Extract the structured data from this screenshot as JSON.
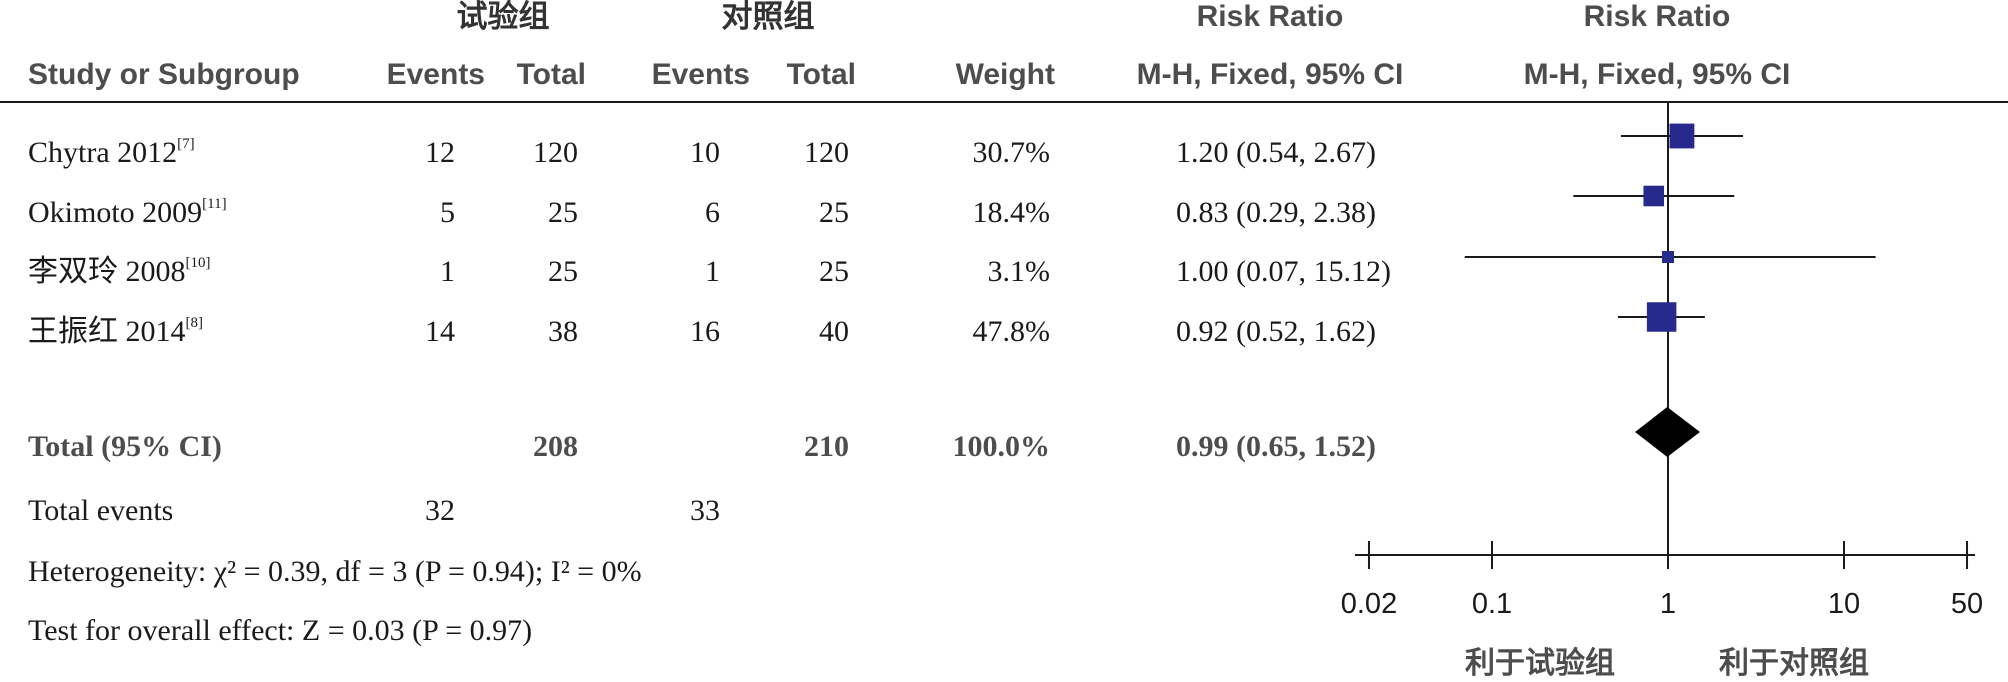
{
  "headers": {
    "exp_group": "试验组",
    "ctrl_group": "对照组",
    "rr_title_left": "Risk Ratio",
    "rr_title_right": "Risk Ratio",
    "study": "Study or Subgroup",
    "events": "Events",
    "total": "Total",
    "weight": "Weight",
    "method_left": "M-H, Fixed, 95% CI",
    "method_right": "M-H, Fixed, 95% CI"
  },
  "studies": [
    {
      "name": "Chytra 2012",
      "ref": "[7]",
      "exp_events": "12",
      "exp_total": "120",
      "ctrl_events": "10",
      "ctrl_total": "120",
      "weight": "30.7%",
      "ci_text": "1.20 (0.54, 2.67)"
    },
    {
      "name": "Okimoto 2009",
      "ref": "[11]",
      "exp_events": "5",
      "exp_total": "25",
      "ctrl_events": "6",
      "ctrl_total": "25",
      "weight": "18.4%",
      "ci_text": "0.83 (0.29, 2.38)"
    },
    {
      "name": "李双玲 2008",
      "ref": "[10]",
      "exp_events": "1",
      "exp_total": "25",
      "ctrl_events": "1",
      "ctrl_total": "25",
      "weight": "3.1%",
      "ci_text": "1.00 (0.07, 15.12)"
    },
    {
      "name": "王振红 2014",
      "ref": "[8]",
      "exp_events": "14",
      "exp_total": "38",
      "ctrl_events": "16",
      "ctrl_total": "40",
      "weight": "47.8%",
      "ci_text": "0.92 (0.52, 1.62)"
    }
  ],
  "total_row": {
    "label": "Total (95% CI)",
    "exp_total": "208",
    "ctrl_total": "210",
    "weight": "100.0%",
    "ci_text": "0.99 (0.65, 1.52)"
  },
  "events_row": {
    "label": "Total events",
    "exp_events": "32",
    "ctrl_events": "33"
  },
  "stats": {
    "heterogeneity": "Heterogeneity: χ² = 0.39, df = 3 (P = 0.94); I² = 0%",
    "overall": "Test for overall effect: Z = 0.03 (P = 0.97)"
  },
  "favours": {
    "left": "利于试验组",
    "right": "利于对照组"
  },
  "colors": {
    "study_marker": "#262a8c",
    "summary_marker": "#000000",
    "line": "#1a1a1a"
  },
  "chart_data": {
    "type": "forest",
    "scale": "log",
    "x_ticks": [
      0.02,
      0.1,
      1,
      10,
      50
    ],
    "x_tick_labels": [
      "0.02",
      "0.1",
      "1",
      "10",
      "50"
    ],
    "xlim": [
      0.02,
      50
    ],
    "studies": [
      {
        "name": "Chytra 2012",
        "rr": 1.2,
        "lower": 0.54,
        "upper": 2.67,
        "weight": 30.7
      },
      {
        "name": "Okimoto 2009",
        "rr": 0.83,
        "lower": 0.29,
        "upper": 2.38,
        "weight": 18.4
      },
      {
        "name": "李双玲 2008",
        "rr": 1.0,
        "lower": 0.07,
        "upper": 15.12,
        "weight": 3.1
      },
      {
        "name": "王振红 2014",
        "rr": 0.92,
        "lower": 0.52,
        "upper": 1.62,
        "weight": 47.8
      }
    ],
    "summary": {
      "rr": 0.99,
      "lower": 0.65,
      "upper": 1.52
    }
  }
}
